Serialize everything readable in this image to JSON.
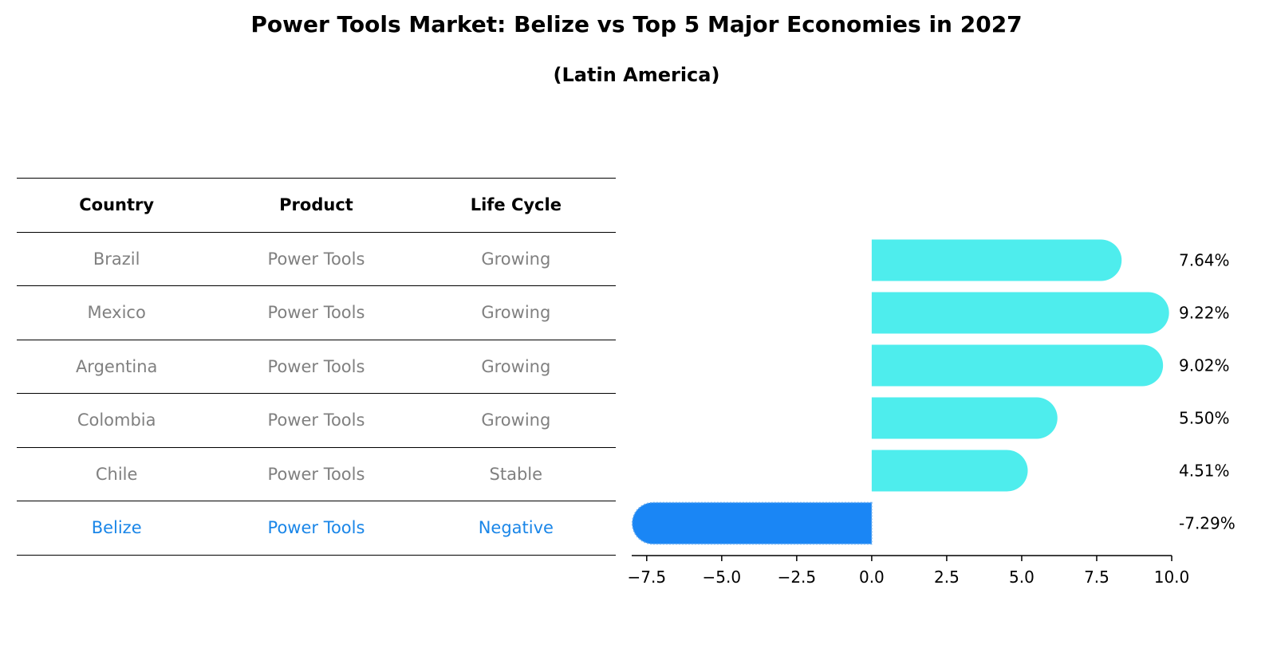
{
  "title": "Power Tools Market: Belize vs Top 5 Major Economies in 2027",
  "subtitle": "(Latin America)",
  "table": {
    "headers": [
      "Country",
      "Product",
      "Life Cycle"
    ],
    "rows": [
      [
        "Brazil",
        "Power Tools",
        "Growing"
      ],
      [
        "Mexico",
        "Power Tools",
        "Growing"
      ],
      [
        "Argentina",
        "Power Tools",
        "Growing"
      ],
      [
        "Colombia",
        "Power Tools",
        "Growing"
      ],
      [
        "Chile",
        "Power Tools",
        "Stable"
      ],
      [
        "Belize",
        "Power Tools",
        "Negative"
      ]
    ]
  },
  "colors": {
    "positive_bar": "#4eeded",
    "negative_bar": "#1a86f5",
    "highlight_text": "#1a86e8",
    "muted_text": "#808080"
  },
  "chart_data": {
    "type": "bar",
    "orientation": "horizontal",
    "categories": [
      "Brazil",
      "Mexico",
      "Argentina",
      "Colombia",
      "Chile",
      "Belize"
    ],
    "values": [
      7.64,
      9.22,
      9.02,
      5.5,
      4.51,
      -7.29
    ],
    "value_labels": [
      "7.64%",
      "9.22%",
      "9.02%",
      "5.50%",
      "4.51%",
      "-7.29%"
    ],
    "xlim": [
      -8,
      10
    ],
    "xticks": [
      -7.5,
      -5.0,
      -2.5,
      0.0,
      2.5,
      5.0,
      7.5,
      10.0
    ],
    "xtick_labels": [
      "−7.5",
      "−5.0",
      "−2.5",
      "0.0",
      "2.5",
      "5.0",
      "7.5",
      "10.0"
    ],
    "grid": false
  }
}
